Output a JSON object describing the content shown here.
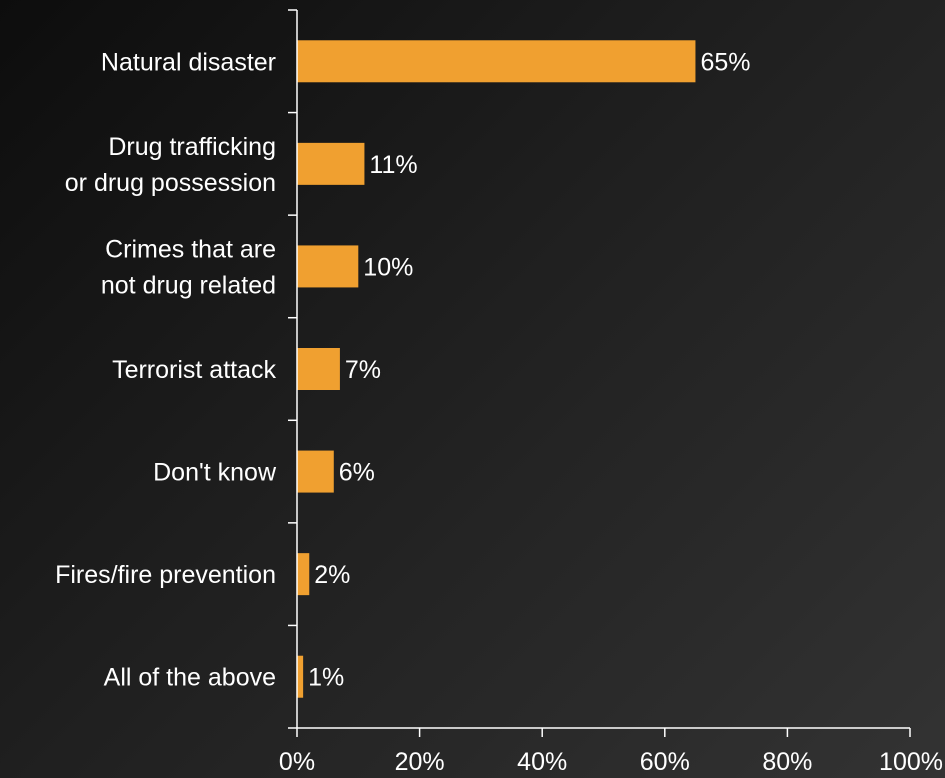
{
  "chart_data": {
    "type": "bar",
    "orientation": "horizontal",
    "categories": [
      [
        "Natural disaster"
      ],
      [
        "Drug trafficking",
        "or drug possession"
      ],
      [
        "Crimes that are",
        "not drug related"
      ],
      [
        "Terrorist attack"
      ],
      [
        "Don't know"
      ],
      [
        "Fires/fire prevention"
      ],
      [
        "All of the above"
      ]
    ],
    "values": [
      65,
      11,
      10,
      7,
      6,
      2,
      1
    ],
    "value_labels": [
      "65%",
      "11%",
      "10%",
      "7%",
      "6%",
      "2%",
      "1%"
    ],
    "xlim": [
      0,
      100
    ],
    "x_ticks": [
      0,
      20,
      40,
      60,
      80,
      100
    ],
    "x_tick_labels": [
      "0%",
      "20%",
      "40%",
      "60%",
      "80%",
      "100%"
    ],
    "title": "",
    "xlabel": "",
    "ylabel": "",
    "bar_color": "#f0a030",
    "axis_color": "#ffffff",
    "text_color": "#ffffff",
    "grid": false
  }
}
